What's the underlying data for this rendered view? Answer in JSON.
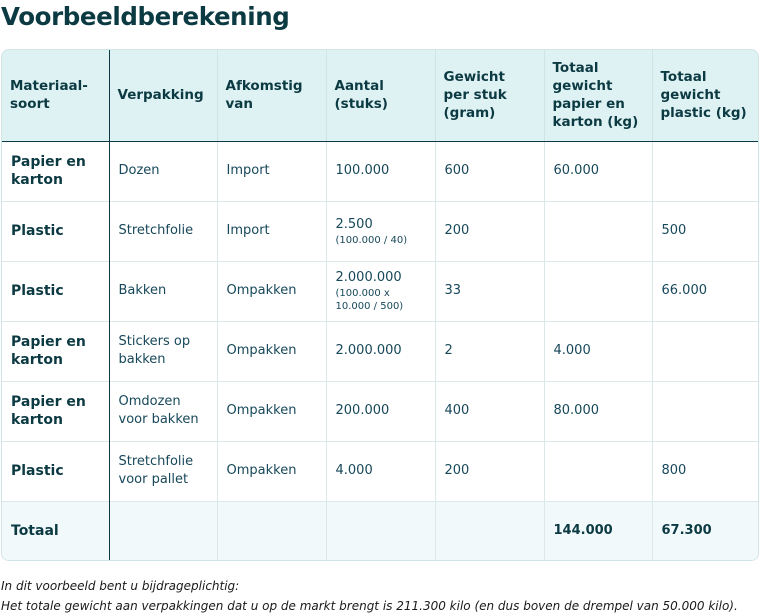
{
  "title": "Voorbeeldberekening",
  "headers": [
    "Materiaal-\nsoort",
    "Verpakking",
    "Afkomstig\nvan",
    "Aantal\n(stuks)",
    "Gewicht\nper stuk\n(gram)",
    "Totaal\ngewicht\npapier en\nkarton (kg)",
    "Totaal\ngewicht\nplastic (kg)"
  ],
  "rows": [
    {
      "materiaal": "Papier en karton",
      "verpakking": "Dozen",
      "afkomstig": "Import",
      "aantal": "100.000",
      "aantal_note": "",
      "gewicht": "600",
      "papier": "60.000",
      "plastic": ""
    },
    {
      "materiaal": "Plastic",
      "verpakking": "Stretchfolie",
      "afkomstig": "Import",
      "aantal": "2.500",
      "aantal_note": "(100.000 / 40)",
      "gewicht": "200",
      "papier": "",
      "plastic": "500"
    },
    {
      "materiaal": "Plastic",
      "verpakking": "Bakken",
      "afkomstig": "Ompakken",
      "aantal": "2.000.000",
      "aantal_note": "(100.000 x 10.000 / 500)",
      "gewicht": "33",
      "papier": "",
      "plastic": "66.000"
    },
    {
      "materiaal": "Papier en karton",
      "verpakking": "Stickers op bakken",
      "afkomstig": "Ompakken",
      "aantal": "2.000.000",
      "aantal_note": "",
      "gewicht": "2",
      "papier": "4.000",
      "plastic": ""
    },
    {
      "materiaal": "Papier en karton",
      "verpakking": "Omdozen voor bakken",
      "afkomstig": "Ompakken",
      "aantal": "200.000",
      "aantal_note": "",
      "gewicht": "400",
      "papier": "80.000",
      "plastic": ""
    },
    {
      "materiaal": "Plastic",
      "verpakking": "Stretchfolie voor pallet",
      "afkomstig": "Ompakken",
      "aantal": "4.000",
      "aantal_note": "",
      "gewicht": "200",
      "papier": "",
      "plastic": "800"
    }
  ],
  "total": {
    "label": "Totaal",
    "papier": "144.000",
    "plastic": "67.300"
  },
  "footnote": {
    "line1": "In dit voorbeeld bent u bijdrageplichtig:",
    "line2": "Het totale gewicht aan verpakkingen dat u op de markt brengt is 211.300 kilo (en dus boven de drempel van 50.000 kilo)."
  }
}
